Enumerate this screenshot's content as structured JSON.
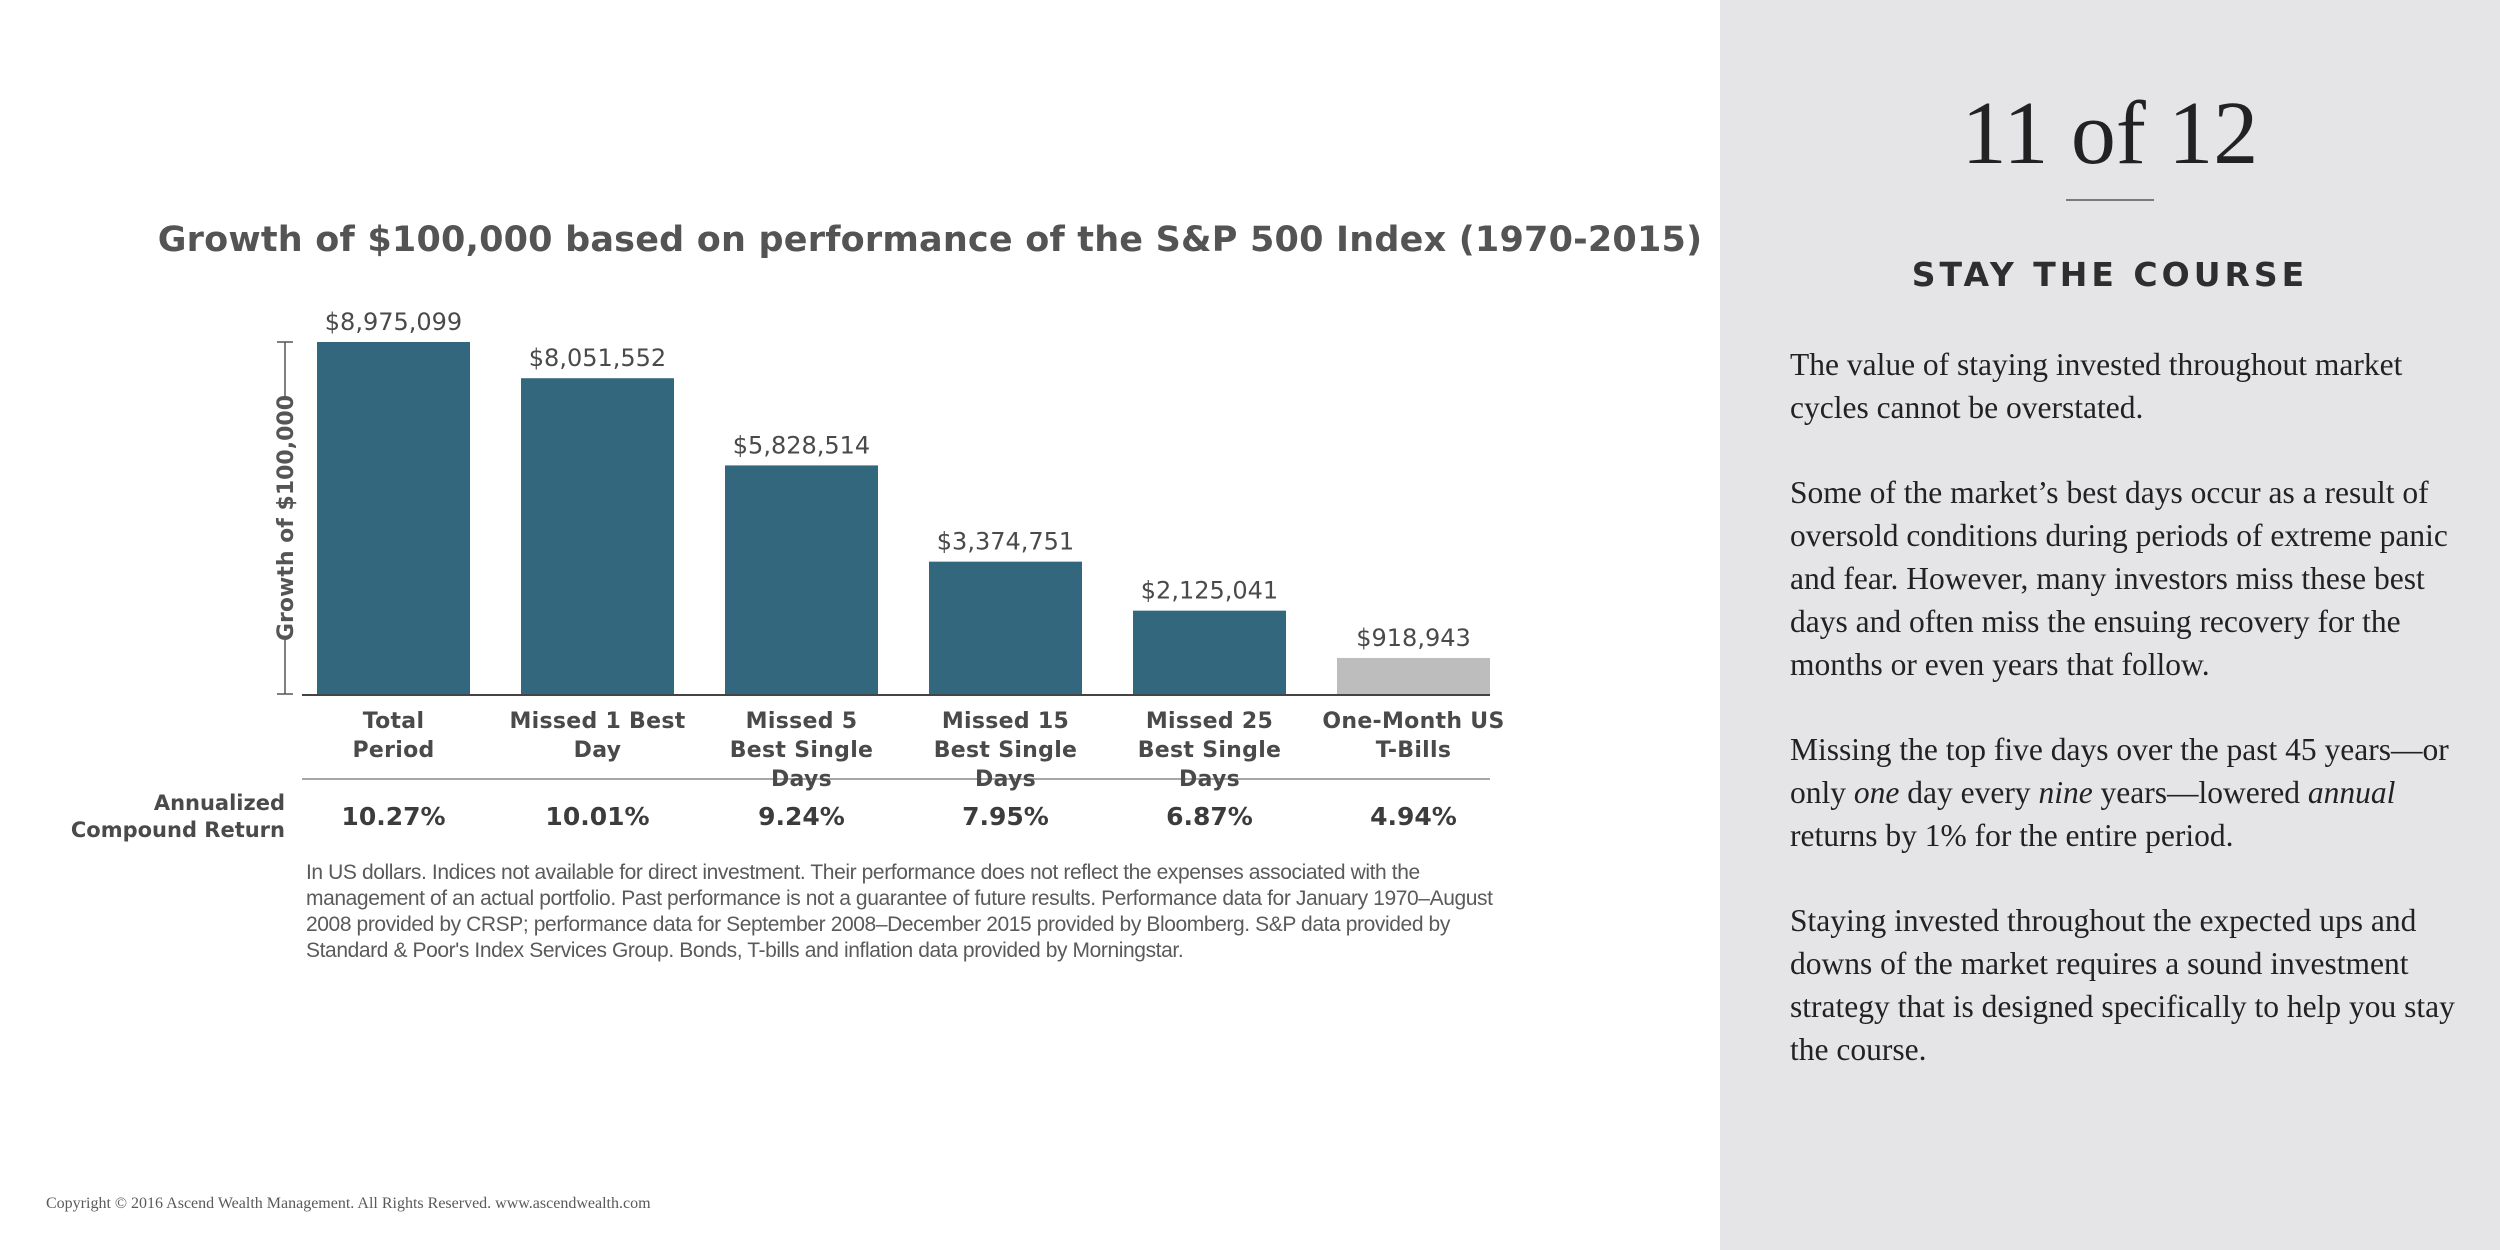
{
  "chart_data": {
    "type": "bar",
    "title": "Growth of $100,000 based on performance of the S&P 500 Index (1970-2015)",
    "ylabel": "Growth of $100,000",
    "xlabel": "",
    "ylim": [
      0,
      8975099
    ],
    "categories": [
      [
        "Total",
        "Period"
      ],
      [
        "Missed 1 Best",
        "Day"
      ],
      [
        "Missed 5",
        "Best Single Days"
      ],
      [
        "Missed 15",
        "Best Single Days"
      ],
      [
        "Missed 25",
        "Best Single Days"
      ],
      [
        "One-Month US",
        "T-Bills"
      ]
    ],
    "values": [
      8975099,
      8051552,
      5828514,
      3374751,
      2125041,
      918943
    ],
    "value_labels": [
      "$8,975,099",
      "$8,051,552",
      "$5,828,514",
      "$3,374,751",
      "$2,125,041",
      "$918,943"
    ],
    "bar_colors": [
      "#32677e",
      "#32677e",
      "#32677e",
      "#32677e",
      "#32677e",
      "#bdbdbd"
    ],
    "annualized_label": [
      "Annualized",
      "Compound Return"
    ],
    "annualized_returns": [
      "10.27%",
      "10.01%",
      "9.24%",
      "7.95%",
      "6.87%",
      "4.94%"
    ]
  },
  "footnote": "In US dollars. Indices not available for direct investment. Their performance does not reflect the expenses associated with the management of an actual portfolio. Past performance is not a guarantee of future results. Performance data for January 1970–August 2008 provided by CRSP; performance data for September 2008–December 2015 provided by Bloomberg. S&P data provided by Standard & Poor's Index Services Group. Bonds, T-bills and inflation data provided by Morningstar.",
  "copyright": "Copyright © 2016 Ascend Wealth Management. All Rights Reserved.  www.ascendwealth.com",
  "sidebar": {
    "page_number": "11 of 12",
    "heading": "STAY THE COURSE",
    "paragraphs": [
      "The value of staying invested throughout market cycles cannot be overstated.",
      "Some of the market’s best days occur as a result of oversold conditions during periods of extreme panic and fear. However, many investors miss these best days and often miss the ensuing recovery for the months or even years that follow.",
      "Missing the top five days over the past 45 years—or only one day every nine years—lowered annual returns by 1% for the entire period.",
      "Staying invested throughout the expected ups and downs of the market requires a sound investment strategy that is designed specifically to help you stay the course."
    ]
  },
  "colors": {
    "bar_primary": "#32677e",
    "bar_secondary": "#bdbdbd",
    "sidebar_bg": "#e5e5e7"
  }
}
